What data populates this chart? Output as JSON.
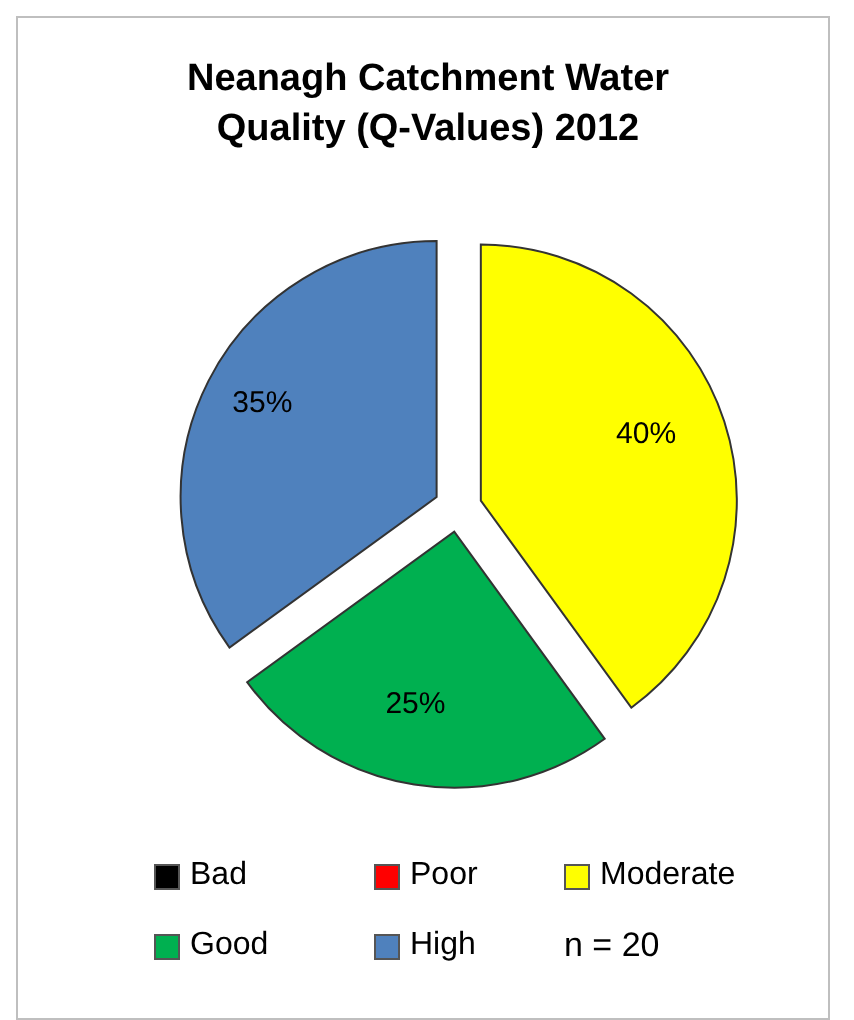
{
  "chart_data": {
    "type": "pie",
    "title": "Neanagh Catchment Water Quality (Q-Values) 2012",
    "categories": [
      "Bad",
      "Poor",
      "Moderate",
      "Good",
      "High"
    ],
    "values": [
      0,
      0,
      40,
      25,
      35
    ],
    "colors": [
      "#000000",
      "#ff0000",
      "#ffff00",
      "#00b050",
      "#4f81bd"
    ],
    "value_labels": [
      null,
      null,
      "40%",
      "25%",
      "35%"
    ],
    "legend": "bottom",
    "annotations": [
      "n = 20"
    ]
  }
}
